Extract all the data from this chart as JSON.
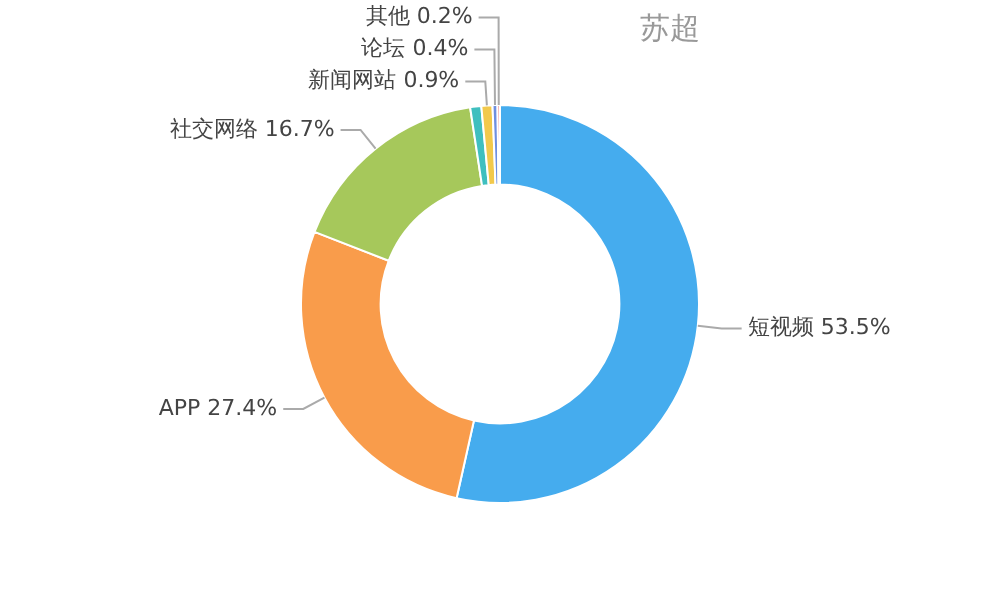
{
  "chart_data": {
    "type": "donut",
    "title": "苏超",
    "categories": [
      "短视频",
      "APP",
      "社交网络",
      null,
      "新闻网站",
      "论坛",
      "其他"
    ],
    "values": [
      53.5,
      27.4,
      16.7,
      0.9,
      0.9,
      0.4,
      0.2
    ],
    "value_labels": [
      "53.5%",
      "27.4%",
      "16.7%",
      null,
      "0.9%",
      "0.4%",
      "0.2%"
    ],
    "colors": [
      "#45acee",
      "#f99c4b",
      "#a6c85b",
      "#3fbfbf",
      "#f2c94c",
      "#6e8fe0",
      "#e86a6a"
    ],
    "legend": false
  }
}
